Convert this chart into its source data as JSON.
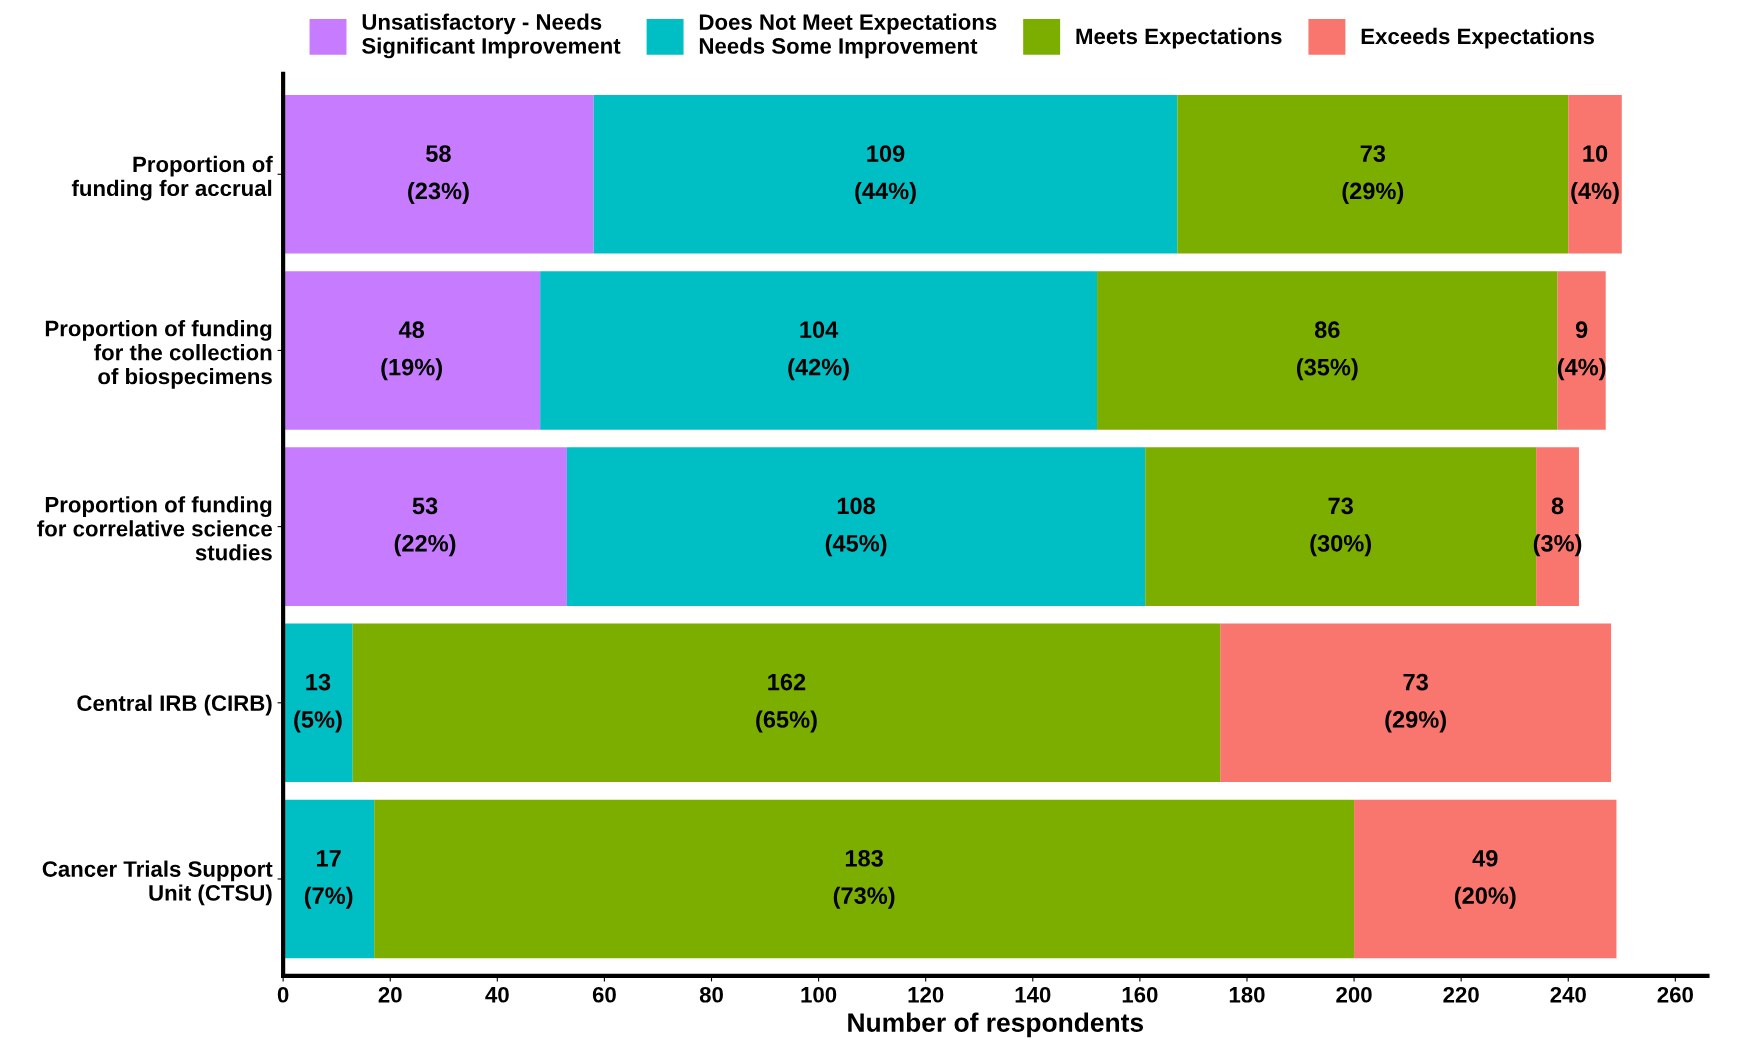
{
  "chart_data": {
    "type": "bar",
    "orientation": "horizontal",
    "stacked": true,
    "categories": [
      "Proportion of\nfunding for accrual",
      "Proportion of funding\nfor the collection\nof biospecimens",
      "Proportion of funding\nfor correlative science\nstudies",
      "Central IRB (CIRB)",
      "Cancer Trials Support\nUnit (CTSU)"
    ],
    "series": [
      {
        "name": "Unsatisfactory - Needs\nSignificant Improvement",
        "color": "#c77cff",
        "values": [
          58,
          48,
          53,
          null,
          null
        ],
        "value_labels": [
          "58\n(23%)",
          "48\n(19%)",
          "53\n(22%)",
          null,
          null
        ]
      },
      {
        "name": "Does Not Meet Expectations\nNeeds Some Improvement",
        "color": "#00bfc4",
        "values": [
          109,
          104,
          108,
          13,
          17
        ],
        "value_labels": [
          "109\n(44%)",
          "104\n(42%)",
          "108\n(45%)",
          "13\n(5%)",
          "17\n(7%)"
        ]
      },
      {
        "name": "Meets Expectations",
        "color": "#7cae00",
        "values": [
          73,
          86,
          73,
          162,
          183
        ],
        "value_labels": [
          "73\n(29%)",
          "86\n(35%)",
          "73\n(30%)",
          "162\n(65%)",
          "183\n(73%)"
        ]
      },
      {
        "name": "Exceeds Expectations",
        "color": "#f8766d",
        "values": [
          10,
          9,
          8,
          73,
          49
        ],
        "value_labels": [
          "10\n(4%)",
          "9\n(4%)",
          "8\n(3%)",
          "73\n(29%)",
          "49\n(20%)"
        ]
      }
    ],
    "xlim": [
      0,
      266
    ],
    "xticks": [
      0,
      20,
      40,
      60,
      80,
      100,
      120,
      140,
      160,
      180,
      200,
      220,
      240,
      260
    ],
    "xlabel": "Number of respondents",
    "legend": "top",
    "grid": false
  }
}
